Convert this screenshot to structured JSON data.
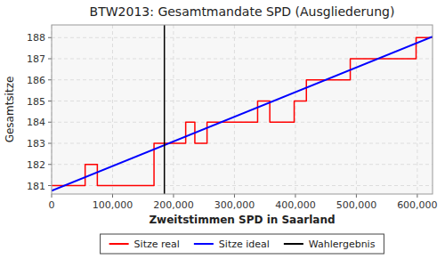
{
  "chart_data": {
    "type": "line",
    "title": "BTW2013: Gesamtmandate SPD (Ausgliederung)",
    "x_label": "Zweitstimmen SPD in Saarland",
    "y_label": "Gesamtsitze",
    "xlim": [
      0,
      625000
    ],
    "ylim": [
      180.6,
      188.6
    ],
    "xticks": [
      0,
      {
        "value": 100000,
        "label": "100,000"
      },
      {
        "value": 200000,
        "label": "200,000"
      },
      {
        "value": 300000,
        "label": "300,000"
      },
      {
        "value": 400000,
        "label": "400,000"
      },
      {
        "value": 500000,
        "label": "500,000"
      },
      {
        "value": 600000,
        "label": "600,000"
      }
    ],
    "yticks": [
      181,
      182,
      183,
      184,
      185,
      186,
      187,
      188
    ],
    "grid": true,
    "legend": "bottom",
    "series": [
      {
        "name": "Sitze real",
        "type": "line",
        "color": "#ff0000",
        "x": [
          0,
          55000,
          55000,
          75000,
          75000,
          168000,
          168000,
          220000,
          220000,
          235000,
          235000,
          255000,
          255000,
          338000,
          338000,
          358000,
          358000,
          398000,
          398000,
          418000,
          418000,
          490000,
          490000,
          598000,
          598000,
          625000
        ],
        "values": [
          181,
          181,
          182,
          182,
          181,
          181,
          183,
          183,
          184,
          184,
          183,
          183,
          184,
          184,
          185,
          185,
          184,
          184,
          185,
          185,
          186,
          186,
          187,
          187,
          188,
          188
        ]
      },
      {
        "name": "Sitze ideal",
        "type": "line",
        "color": "#0000ff",
        "x": [
          0,
          625000
        ],
        "values": [
          180.75,
          188.05
        ]
      },
      {
        "name": "Wahlergebnis",
        "type": "vline",
        "color": "#000000",
        "x": [
          185000
        ]
      }
    ]
  }
}
